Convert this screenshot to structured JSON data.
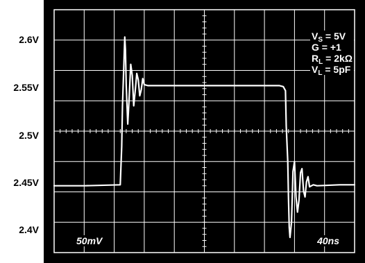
{
  "chart_data": {
    "type": "line",
    "title": "",
    "xlabel": "",
    "ylabel": "",
    "y_tick_labels": [
      "2.6V",
      "2.55V",
      "2.5V",
      "2.45V",
      "2.4V"
    ],
    "y_ticks": [
      2.6,
      2.55,
      2.5,
      2.45,
      2.4
    ],
    "ylim": [
      2.385,
      2.625
    ],
    "xlim": [
      0,
      400
    ],
    "x_unit": "ns",
    "grid": true,
    "grid_divisions": {
      "x": 10,
      "y": 8
    },
    "scale_labels": {
      "vertical": "50mV",
      "horizontal": "40ns"
    },
    "legend_placement": "top-right",
    "conditions": [
      {
        "sym": "V",
        "sub": "S",
        "rest": " = 5V"
      },
      {
        "sym": "G",
        "sub": "",
        "rest": " = +1"
      },
      {
        "sym": "R",
        "sub": "L",
        "rest": " = 2kΩ"
      },
      {
        "sym": "V",
        "sub": "L",
        "rest": " = 5pF"
      }
    ],
    "series": [
      {
        "x": [
          0,
          40,
          88,
          90,
          91,
          93,
          94,
          95,
          96,
          98,
          100,
          102,
          104,
          106,
          108,
          110,
          112,
          114,
          116,
          118,
          120,
          125,
          130,
          200,
          300,
          305,
          308,
          309,
          311,
          312,
          313,
          314,
          316,
          318,
          320,
          322,
          324,
          326,
          328,
          330,
          332,
          334,
          336,
          338,
          340,
          345,
          350,
          380,
          400
        ],
        "y": [
          2.451,
          2.451,
          2.452,
          2.49,
          2.53,
          2.575,
          2.598,
          2.585,
          2.55,
          2.512,
          2.54,
          2.571,
          2.56,
          2.53,
          2.545,
          2.562,
          2.556,
          2.54,
          2.546,
          2.557,
          2.551,
          2.55,
          2.55,
          2.55,
          2.55,
          2.549,
          2.545,
          2.51,
          2.475,
          2.44,
          2.41,
          2.4,
          2.415,
          2.465,
          2.475,
          2.44,
          2.425,
          2.437,
          2.464,
          2.468,
          2.446,
          2.44,
          2.455,
          2.46,
          2.45,
          2.452,
          2.451,
          2.452,
          2.452
        ]
      }
    ]
  }
}
